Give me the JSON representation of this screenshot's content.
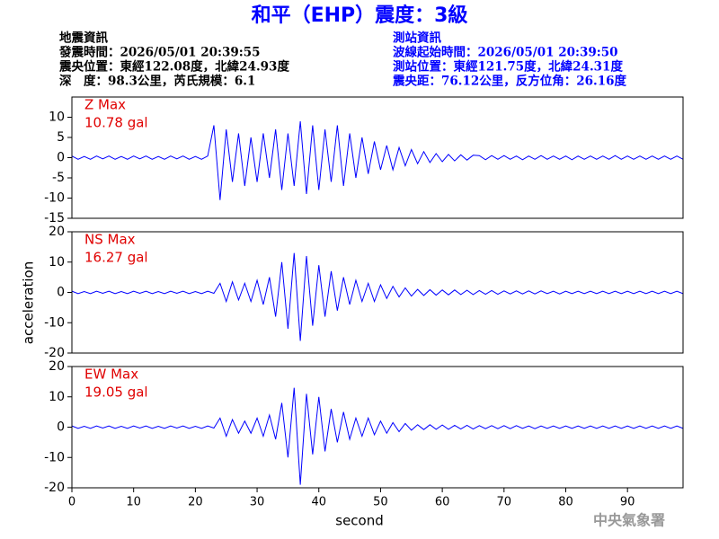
{
  "figure": {
    "title": "和平（EHP）震度：3級",
    "ylabel": "acceleration",
    "xlabel": "second",
    "credit": "中央氣象署"
  },
  "header": {
    "left": [
      "地震資訊",
      "發震時間：2026/05/01 20:39:55",
      "震央位置：東經122.08度，北緯24.93度",
      "深　度：98.3公里，芮氏規模：6.1"
    ],
    "right": [
      "測站資訊",
      "波線起始時間：2026/05/01 20:39:50",
      "測站位置：東經121.75度，北緯24.31度",
      "震央距：76.12公里，反方位角：26.16度"
    ]
  },
  "chart_data": [
    {
      "type": "line",
      "annotation": [
        "Z Max",
        "10.78 gal"
      ],
      "ylim": [
        -15,
        15
      ],
      "yticks": [
        -15,
        -10,
        -5,
        0,
        5,
        10
      ],
      "xlim": [
        0,
        99
      ],
      "xticks": [
        0,
        10,
        20,
        30,
        40,
        50,
        60,
        70,
        80,
        90
      ],
      "x": [
        0,
        1,
        2,
        3,
        4,
        5,
        6,
        7,
        8,
        9,
        10,
        11,
        12,
        13,
        14,
        15,
        16,
        17,
        18,
        19,
        20,
        21,
        22,
        23,
        24,
        25,
        26,
        27,
        28,
        29,
        30,
        31,
        32,
        33,
        34,
        35,
        36,
        37,
        38,
        39,
        40,
        41,
        42,
        43,
        44,
        45,
        46,
        47,
        48,
        49,
        50,
        51,
        52,
        53,
        54,
        55,
        56,
        57,
        58,
        59,
        60,
        61,
        62,
        63,
        64,
        65,
        66,
        67,
        68,
        69,
        70,
        71,
        72,
        73,
        74,
        75,
        76,
        77,
        78,
        79,
        80,
        81,
        82,
        83,
        84,
        85,
        86,
        87,
        88,
        89,
        90,
        91,
        92,
        93,
        94,
        95,
        96,
        97,
        98,
        99
      ],
      "series": [
        {
          "color": "#0000ff",
          "values": [
            0.4,
            -0.4,
            0.3,
            -0.4,
            0.4,
            -0.3,
            0.4,
            -0.4,
            0.3,
            -0.4,
            0.4,
            -0.3,
            0.4,
            -0.4,
            0.3,
            -0.4,
            0.4,
            -0.3,
            0.4,
            -0.4,
            0.3,
            -0.4,
            0.4,
            8,
            -10.5,
            7,
            -6,
            6,
            -7,
            5,
            -6,
            6,
            -5,
            7,
            -8,
            6,
            -7,
            9,
            -9,
            8,
            -8,
            7,
            -6,
            8,
            -7,
            6,
            -5,
            5,
            -4,
            4,
            -3,
            3,
            -3,
            2.5,
            -2,
            2,
            -1.5,
            1.5,
            -1.2,
            1,
            -1,
            0.8,
            -0.8,
            0.7,
            -0.6,
            0.6,
            0.5,
            -0.5,
            0.5,
            -0.4,
            0.5,
            -0.4,
            0.4,
            -0.5,
            0.4,
            -0.4,
            0.5,
            -0.4,
            0.4,
            -0.4,
            0.4,
            -0.5,
            0.4,
            -0.4,
            0.4,
            -0.4,
            0.4,
            -0.4,
            0.5,
            -0.4,
            0.4,
            -0.4,
            0.4,
            -0.4,
            0.4,
            -0.4,
            0.4,
            -0.4,
            0.4,
            -0.4
          ]
        }
      ]
    },
    {
      "type": "line",
      "annotation": [
        "NS Max",
        "16.27 gal"
      ],
      "ylim": [
        -20,
        20
      ],
      "yticks": [
        -20,
        -10,
        0,
        10,
        20
      ],
      "xlim": [
        0,
        99
      ],
      "xticks": [
        0,
        10,
        20,
        30,
        40,
        50,
        60,
        70,
        80,
        90
      ],
      "x": [
        0,
        1,
        2,
        3,
        4,
        5,
        6,
        7,
        8,
        9,
        10,
        11,
        12,
        13,
        14,
        15,
        16,
        17,
        18,
        19,
        20,
        21,
        22,
        23,
        24,
        25,
        26,
        27,
        28,
        29,
        30,
        31,
        32,
        33,
        34,
        35,
        36,
        37,
        38,
        39,
        40,
        41,
        42,
        43,
        44,
        45,
        46,
        47,
        48,
        49,
        50,
        51,
        52,
        53,
        54,
        55,
        56,
        57,
        58,
        59,
        60,
        61,
        62,
        63,
        64,
        65,
        66,
        67,
        68,
        69,
        70,
        71,
        72,
        73,
        74,
        75,
        76,
        77,
        78,
        79,
        80,
        81,
        82,
        83,
        84,
        85,
        86,
        87,
        88,
        89,
        90,
        91,
        92,
        93,
        94,
        95,
        96,
        97,
        98,
        99
      ],
      "series": [
        {
          "color": "#0000ff",
          "values": [
            0.4,
            -0.4,
            0.3,
            -0.4,
            0.4,
            -0.3,
            0.4,
            -0.4,
            0.3,
            -0.4,
            0.4,
            -0.3,
            0.4,
            -0.4,
            0.3,
            -0.4,
            0.4,
            -0.3,
            0.4,
            -0.4,
            0.3,
            -0.4,
            0.4,
            -0.3,
            3,
            -3,
            3.5,
            -2.5,
            3,
            -3,
            4,
            -4,
            5,
            -8,
            10,
            -12,
            13,
            -16,
            12,
            -11,
            9,
            -8,
            7,
            -6,
            5,
            -4,
            4,
            -3,
            3,
            -3,
            2.5,
            -2,
            2,
            -1.5,
            1.5,
            -1.2,
            1,
            -1,
            0.9,
            -0.9,
            0.8,
            -0.8,
            0.8,
            -0.7,
            0.7,
            -0.7,
            0.6,
            -0.6,
            0.6,
            -0.6,
            0.5,
            -0.5,
            0.5,
            -0.5,
            0.5,
            -0.5,
            0.5,
            -0.4,
            0.4,
            -0.5,
            0.4,
            -0.4,
            0.4,
            -0.4,
            0.4,
            -0.4,
            0.4,
            -0.4,
            0.4,
            -0.4,
            0.4,
            -0.4,
            0.4,
            -0.4,
            0.4,
            -0.4,
            0.4,
            -0.4,
            0.4,
            -0.4
          ]
        }
      ]
    },
    {
      "type": "line",
      "annotation": [
        "EW Max",
        "19.05 gal"
      ],
      "ylim": [
        -20,
        20
      ],
      "yticks": [
        -20,
        -10,
        0,
        10,
        20
      ],
      "xlim": [
        0,
        99
      ],
      "xticks": [
        0,
        10,
        20,
        30,
        40,
        50,
        60,
        70,
        80,
        90
      ],
      "x": [
        0,
        1,
        2,
        3,
        4,
        5,
        6,
        7,
        8,
        9,
        10,
        11,
        12,
        13,
        14,
        15,
        16,
        17,
        18,
        19,
        20,
        21,
        22,
        23,
        24,
        25,
        26,
        27,
        28,
        29,
        30,
        31,
        32,
        33,
        34,
        35,
        36,
        37,
        38,
        39,
        40,
        41,
        42,
        43,
        44,
        45,
        46,
        47,
        48,
        49,
        50,
        51,
        52,
        53,
        54,
        55,
        56,
        57,
        58,
        59,
        60,
        61,
        62,
        63,
        64,
        65,
        66,
        67,
        68,
        69,
        70,
        71,
        72,
        73,
        74,
        75,
        76,
        77,
        78,
        79,
        80,
        81,
        82,
        83,
        84,
        85,
        86,
        87,
        88,
        89,
        90,
        91,
        92,
        93,
        94,
        95,
        96,
        97,
        98,
        99
      ],
      "series": [
        {
          "color": "#0000ff",
          "values": [
            0.4,
            -0.4,
            0.3,
            -0.4,
            0.4,
            -0.3,
            0.4,
            -0.4,
            0.3,
            -0.4,
            0.4,
            -0.3,
            0.4,
            -0.4,
            0.3,
            -0.4,
            0.4,
            -0.3,
            0.4,
            -0.4,
            0.3,
            -0.4,
            0.4,
            -0.3,
            3,
            -3,
            2.5,
            -2,
            2,
            -2,
            3,
            -3,
            4,
            -4,
            8,
            -10,
            13,
            -19,
            11,
            -9,
            10,
            -8,
            6,
            -5,
            5,
            -4,
            3,
            -3,
            3,
            -2.5,
            2,
            -2,
            1.5,
            -1.5,
            1.2,
            -1,
            0.8,
            -0.8,
            0.8,
            -0.7,
            0.7,
            -0.7,
            0.6,
            -0.6,
            0.6,
            -0.6,
            0.5,
            -0.5,
            0.5,
            -0.5,
            0.5,
            -0.5,
            0.5,
            -0.4,
            0.4,
            -0.5,
            0.4,
            -0.4,
            0.4,
            -0.4,
            0.4,
            -0.4,
            0.4,
            -0.4,
            0.4,
            -0.4,
            0.4,
            -0.4,
            0.4,
            -0.4,
            0.4,
            -0.4,
            0.4,
            -0.4,
            0.4,
            -0.4,
            0.4,
            -0.4,
            0.4,
            -0.4
          ]
        }
      ]
    }
  ]
}
